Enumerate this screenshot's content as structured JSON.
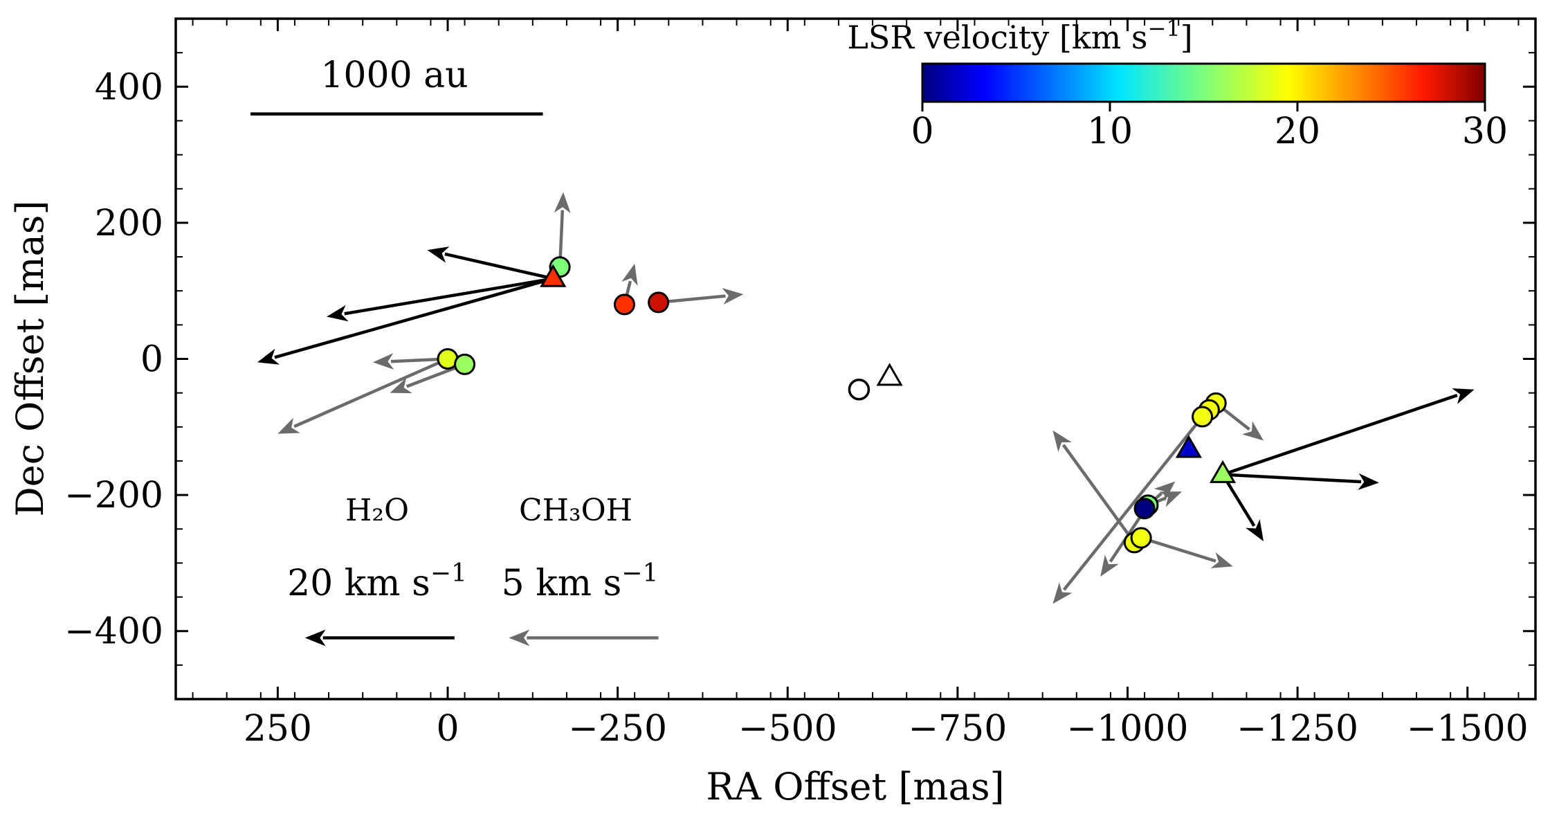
{
  "chart_data": {
    "type": "scatter",
    "xlabel": "RA Offset [mas]",
    "ylabel": "Dec Offset [mas]",
    "xlim": [
      400,
      -1600
    ],
    "ylim": [
      -500,
      500
    ],
    "xticks": [
      250,
      0,
      -250,
      -500,
      -750,
      -1000,
      -1250,
      -1500
    ],
    "yticks": [
      400,
      200,
      0,
      -200,
      -400
    ],
    "xtick_labels": [
      "250",
      "0",
      "−250",
      "−500",
      "−750",
      "−1000",
      "−1250",
      "−1500"
    ],
    "ytick_labels": [
      "400",
      "200",
      "0",
      "−200",
      "−400"
    ],
    "colorbar": {
      "title": "LSR velocity [km s",
      "title_sup": "−1",
      "title_end": "]",
      "range": [
        0,
        30
      ],
      "ticks": [
        0,
        10,
        20,
        30
      ],
      "tick_labels": [
        "0",
        "10",
        "20",
        "30"
      ],
      "colormap": "jet"
    },
    "scale_bar": {
      "label": "1000 au",
      "x0": 290,
      "x1": -140,
      "y": 360
    },
    "reference": {
      "h2o_label": "H₂O",
      "ch3oh_label": "CH₃OH",
      "h2o_speed": "20 km s",
      "ch3oh_speed": "5 km s",
      "speed_sup": "−1",
      "h2o_arrow": {
        "x0": -10,
        "x1": 210,
        "y": -410
      },
      "ch3oh_arrow": {
        "x0": -310,
        "x1": -90,
        "y": -410
      }
    },
    "ch3oh_masers": [
      {
        "x": 0,
        "y": 0,
        "v": 18.5
      },
      {
        "x": -25,
        "y": -8,
        "v": 16
      },
      {
        "x": -165,
        "y": 135,
        "v": 15
      },
      {
        "x": -260,
        "y": 80,
        "v": 26
      },
      {
        "x": -310,
        "y": 83,
        "v": 28
      },
      {
        "x": -1130,
        "y": -65,
        "v": 19
      },
      {
        "x": -1120,
        "y": -75,
        "v": 19
      },
      {
        "x": -1110,
        "y": -85,
        "v": 19
      },
      {
        "x": -1030,
        "y": -215,
        "v": 15
      },
      {
        "x": -1025,
        "y": -220,
        "v": 0
      },
      {
        "x": -1010,
        "y": -270,
        "v": 19
      },
      {
        "x": -1020,
        "y": -263,
        "v": 19
      }
    ],
    "h2o_masers": [
      {
        "x": -155,
        "y": 118,
        "v": 26
      },
      {
        "x": -1090,
        "y": -133,
        "v": 2
      },
      {
        "x": -1140,
        "y": -170,
        "v": 16
      }
    ],
    "ch3oh_vectors": [
      {
        "x0": -165,
        "y0": 135,
        "x1": -170,
        "y1": 245
      },
      {
        "x0": -260,
        "y0": 80,
        "x1": -275,
        "y1": 140
      },
      {
        "x0": -310,
        "y0": 83,
        "x1": -435,
        "y1": 95
      },
      {
        "x0": 0,
        "y0": 0,
        "x1": 110,
        "y1": -5
      },
      {
        "x0": 0,
        "y0": 0,
        "x1": 250,
        "y1": -110
      },
      {
        "x0": -25,
        "y0": -8,
        "x1": 85,
        "y1": -50
      },
      {
        "x0": -1130,
        "y0": -65,
        "x1": -1200,
        "y1": -120
      },
      {
        "x0": -1110,
        "y0": -85,
        "x1": -890,
        "y1": -360
      },
      {
        "x0": -1010,
        "y0": -270,
        "x1": -890,
        "y1": -105
      },
      {
        "x0": -1030,
        "y0": -215,
        "x1": -1070,
        "y1": -180
      },
      {
        "x0": -1030,
        "y0": -215,
        "x1": -1080,
        "y1": -195
      },
      {
        "x0": -1030,
        "y0": -215,
        "x1": -960,
        "y1": -320
      },
      {
        "x0": -1020,
        "y0": -263,
        "x1": -1155,
        "y1": -305
      }
    ],
    "h2o_vectors": [
      {
        "x0": -155,
        "y0": 118,
        "x1": 30,
        "y1": 160
      },
      {
        "x0": -155,
        "y0": 118,
        "x1": 178,
        "y1": 62
      },
      {
        "x0": -155,
        "y0": 118,
        "x1": 280,
        "y1": -5
      },
      {
        "x0": -1140,
        "y0": -170,
        "x1": -1510,
        "y1": -45
      },
      {
        "x0": -1140,
        "y0": -170,
        "x1": -1370,
        "y1": -182
      },
      {
        "x0": -1140,
        "y0": -170,
        "x1": -1200,
        "y1": -268
      }
    ],
    "open_circle": {
      "x": -605,
      "y": -45
    },
    "open_triangle": {
      "x": -650,
      "y": -27
    }
  }
}
